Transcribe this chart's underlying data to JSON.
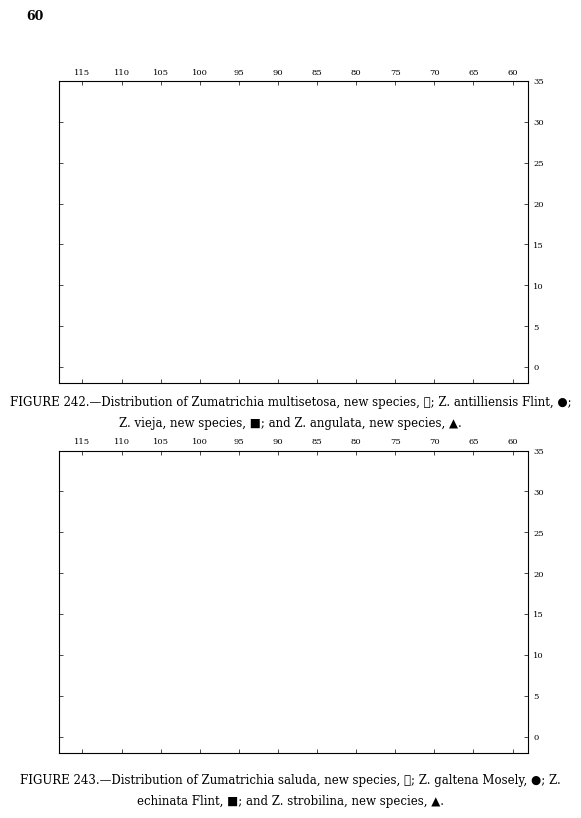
{
  "page_number": "60",
  "figure1": {
    "caption_line1": "FIGURE 242.—Distribution of Zumatrichia multisetosa, new species, ★; Z. antilliensis Flint, ●;",
    "caption_line2": "Z. vieja, new species, ■; and Z. angulata, new species, ▲."
  },
  "figure2": {
    "caption_line1": "FIGURE 243.—Distribution of Zumatrichia saluda, new species, ★; Z. galtena Mosely, ●; Z.",
    "caption_line2": "echinata Flint, ■; and Z. strobilina, new species, ▲."
  },
  "map": {
    "lon_min": -118,
    "lon_max": -58,
    "lat_min": -2,
    "lat_max": 35,
    "xticks": [
      -115,
      -110,
      -105,
      -100,
      -95,
      -90,
      -85,
      -80,
      -75,
      -70,
      -65,
      -60
    ],
    "yticks": [
      0,
      5,
      10,
      15,
      20,
      25,
      30,
      35
    ],
    "xlabel_vals": [
      115,
      110,
      105,
      100,
      95,
      90,
      85,
      80,
      75,
      70,
      65,
      60
    ],
    "ylabel_vals": [
      0,
      5,
      10,
      15,
      20,
      25,
      30,
      35
    ]
  },
  "fig_bg": "#ffffff",
  "map_bg": "#ffffff",
  "border_color": "#000000",
  "font_size_caption": 9,
  "font_size_tick": 6
}
